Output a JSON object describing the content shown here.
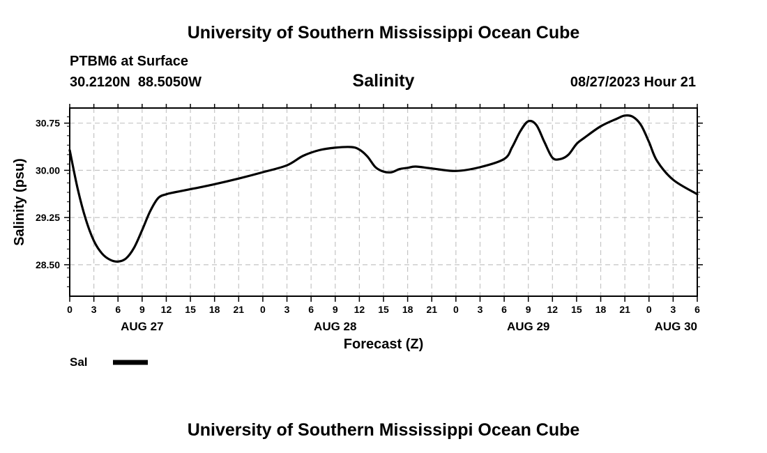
{
  "header": {
    "title": "University of Southern Mississippi Ocean Cube",
    "station": "PTBM6 at Surface",
    "coords": "30.2120N  88.5050W",
    "variable": "Salinity",
    "datetime": "08/27/2023 Hour 21"
  },
  "footer": {
    "title": "University of Southern Mississippi Ocean Cube"
  },
  "chart_data": {
    "type": "line",
    "title": "Salinity",
    "xlabel": "Forecast (Z)",
    "ylabel": "Salinity (psu)",
    "xlim": [
      0,
      78
    ],
    "ylim": [
      28.0,
      30.99
    ],
    "grid": true,
    "y_ticks": [
      28.5,
      29.25,
      30.0,
      30.75
    ],
    "y_tick_labels": [
      "28.50",
      "29.25",
      "30.00",
      "30.75"
    ],
    "x_ticks": [
      0,
      3,
      6,
      9,
      12,
      15,
      18,
      21,
      24,
      27,
      30,
      33,
      36,
      39,
      42,
      45,
      48,
      51,
      54,
      57,
      60,
      63,
      66,
      69,
      72,
      75,
      78
    ],
    "x_tick_labels": [
      "0",
      "3",
      "6",
      "9",
      "12",
      "15",
      "18",
      "21",
      "0",
      "3",
      "6",
      "9",
      "12",
      "15",
      "18",
      "21",
      "0",
      "3",
      "6",
      "9",
      "12",
      "15",
      "18",
      "21",
      "0",
      "3",
      "6"
    ],
    "day_labels": [
      {
        "hour": 9,
        "label": "AUG 27"
      },
      {
        "hour": 33,
        "label": "AUG 28"
      },
      {
        "hour": 57,
        "label": "AUG 29"
      },
      {
        "hour": 78,
        "label": "AUG 30"
      }
    ],
    "legend": [
      {
        "name": "Sal",
        "position": "bottom-left"
      }
    ],
    "series": [
      {
        "name": "Sal",
        "x": [
          0,
          1,
          2,
          3,
          4,
          5,
          6,
          7,
          8,
          9,
          10,
          11,
          12,
          13,
          15,
          18,
          21,
          24,
          27,
          29,
          31,
          33,
          35,
          36,
          37,
          38,
          39,
          40,
          41,
          42,
          43,
          45,
          48,
          51,
          54,
          55,
          56,
          57,
          58,
          59,
          60,
          61,
          62,
          63,
          64,
          66,
          68,
          69,
          70,
          71,
          72,
          73,
          75,
          78
        ],
        "values": [
          30.32,
          29.7,
          29.22,
          28.88,
          28.68,
          28.58,
          28.55,
          28.6,
          28.77,
          29.05,
          29.35,
          29.56,
          29.62,
          29.65,
          29.7,
          29.78,
          29.87,
          29.97,
          30.08,
          30.23,
          30.32,
          30.36,
          30.37,
          30.33,
          30.22,
          30.05,
          29.98,
          29.97,
          30.02,
          30.04,
          30.06,
          30.03,
          29.99,
          30.05,
          30.18,
          30.37,
          30.62,
          30.78,
          30.72,
          30.45,
          30.2,
          30.18,
          30.25,
          30.42,
          30.52,
          30.7,
          30.82,
          30.87,
          30.85,
          30.72,
          30.45,
          30.15,
          29.85,
          29.62
        ]
      }
    ]
  }
}
